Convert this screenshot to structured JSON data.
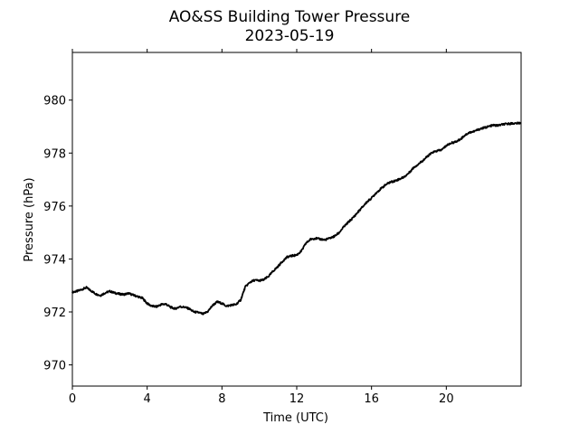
{
  "chart_data": {
    "type": "line",
    "title": "AO&SS Building Tower Pressure",
    "subtitle": "2023-05-19",
    "xlabel": "Time (UTC)",
    "ylabel": "Pressure (hPa)",
    "xlim": [
      0,
      24
    ],
    "ylim": [
      969.2,
      981.8
    ],
    "xticks": [
      0,
      4,
      8,
      12,
      16,
      20
    ],
    "yticks": [
      970,
      972,
      974,
      976,
      978,
      980
    ],
    "grid": false,
    "line_color": "#000000",
    "series": [
      {
        "x": [
          0,
          0.25,
          0.5,
          0.75,
          1.0,
          1.25,
          1.5,
          1.75,
          2.0,
          2.25,
          2.5,
          2.75,
          3.0,
          3.25,
          3.5,
          3.75,
          4.0,
          4.25,
          4.5,
          4.75,
          5.0,
          5.25,
          5.5,
          5.75,
          6.0,
          6.25,
          6.5,
          6.75,
          7.0,
          7.25,
          7.5,
          7.75,
          8.0,
          8.25,
          8.5,
          8.75,
          9.0,
          9.25,
          9.5,
          9.75,
          10.0,
          10.25,
          10.5,
          10.75,
          11.0,
          11.25,
          11.5,
          11.75,
          12.0,
          12.25,
          12.5,
          12.75,
          13.0,
          13.25,
          13.5,
          13.75,
          14.0,
          14.25,
          14.5,
          14.75,
          15.0,
          15.25,
          15.5,
          15.75,
          16.0,
          16.25,
          16.5,
          16.75,
          17.0,
          17.25,
          17.5,
          17.75,
          18.0,
          18.25,
          18.5,
          18.75,
          19.0,
          19.25,
          19.5,
          19.75,
          20.0,
          20.25,
          20.5,
          20.75,
          21.0,
          21.25,
          21.5,
          21.75,
          22.0,
          22.25,
          22.5,
          22.75,
          23.0,
          23.25,
          23.5,
          23.75,
          24.0
        ],
        "y": [
          972.75,
          972.78,
          972.85,
          972.92,
          972.8,
          972.68,
          972.62,
          972.72,
          972.78,
          972.72,
          972.68,
          972.66,
          972.7,
          972.64,
          972.58,
          972.52,
          972.32,
          972.22,
          972.2,
          972.28,
          972.3,
          972.18,
          972.12,
          972.2,
          972.18,
          972.12,
          972.0,
          971.98,
          971.92,
          972.02,
          972.25,
          972.38,
          972.32,
          972.22,
          972.26,
          972.28,
          972.45,
          972.95,
          973.12,
          973.2,
          973.18,
          973.22,
          973.35,
          973.55,
          973.72,
          973.92,
          974.08,
          974.12,
          974.15,
          974.3,
          974.6,
          974.75,
          974.78,
          974.75,
          974.72,
          974.78,
          974.85,
          974.98,
          975.2,
          975.38,
          975.55,
          975.75,
          975.95,
          976.15,
          976.3,
          976.5,
          976.65,
          976.8,
          976.9,
          976.95,
          977.02,
          977.1,
          977.25,
          977.45,
          977.58,
          977.72,
          977.88,
          978.02,
          978.08,
          978.12,
          978.28,
          978.38,
          978.42,
          978.52,
          978.68,
          978.78,
          978.82,
          978.9,
          978.95,
          979.0,
          979.05,
          979.04,
          979.08,
          979.1,
          979.12,
          979.12,
          979.14
        ]
      }
    ]
  }
}
